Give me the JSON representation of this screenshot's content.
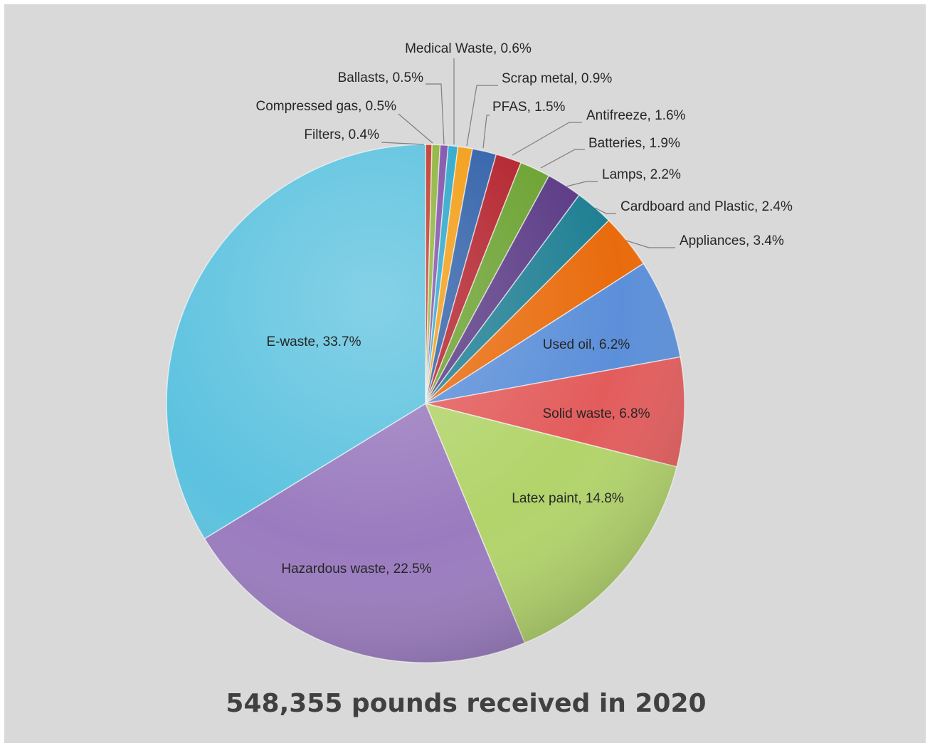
{
  "chart_data": {
    "type": "pie",
    "title": "548,355 pounds received in 2020",
    "slices": [
      {
        "label": "Filters",
        "value": 0.4,
        "label_text": "Filters, 0.4%",
        "color": "#c0392b"
      },
      {
        "label": "Compressed gas",
        "value": 0.5,
        "label_text": "Compressed gas, 0.5%",
        "color": "#8db33a"
      },
      {
        "label": "Ballasts",
        "value": 0.5,
        "label_text": "Ballasts, 0.5%",
        "color": "#7d4fa8"
      },
      {
        "label": "Medical Waste",
        "value": 0.6,
        "label_text": "Medical Waste, 0.6%",
        "color": "#2aa6c9"
      },
      {
        "label": "Scrap metal",
        "value": 0.9,
        "label_text": "Scrap metal, 0.9%",
        "color": "#f39c12"
      },
      {
        "label": "PFAS",
        "value": 1.5,
        "label_text": "PFAS, 1.5%",
        "color": "#2e5fa8"
      },
      {
        "label": "Antifreeze",
        "value": 1.6,
        "label_text": "Antifreeze, 1.6%",
        "color": "#b3202a"
      },
      {
        "label": "Batteries",
        "value": 1.9,
        "label_text": "Batteries, 1.9%",
        "color": "#6aa12f"
      },
      {
        "label": "Lamps",
        "value": 2.2,
        "label_text": "Lamps, 2.2%",
        "color": "#5a3a85"
      },
      {
        "label": "Cardboard and Plastic",
        "value": 2.4,
        "label_text": "Cardboard and Plastic, 2.4%",
        "color": "#1f7f93"
      },
      {
        "label": "Appliances",
        "value": 3.4,
        "label_text": "Appliances, 3.4%",
        "color": "#e96b0c"
      },
      {
        "label": "Used oil",
        "value": 6.2,
        "label_text": "Used oil, 6.2%",
        "color": "#5b8fd9"
      },
      {
        "label": "Solid waste",
        "value": 6.8,
        "label_text": "Solid waste, 6.8%",
        "color": "#e35c5c"
      },
      {
        "label": "Latex paint",
        "value": 14.8,
        "label_text": "Latex paint, 14.8%",
        "color": "#b2d46a"
      },
      {
        "label": "Hazardous waste",
        "value": 22.5,
        "label_text": "Hazardous waste, 22.5%",
        "color": "#9a7bbf"
      },
      {
        "label": "E-waste",
        "value": 33.7,
        "label_text": "E-waste, 33.7%",
        "color": "#5cc2df"
      }
    ],
    "legend": "none",
    "data_labels": "category and percentage"
  }
}
